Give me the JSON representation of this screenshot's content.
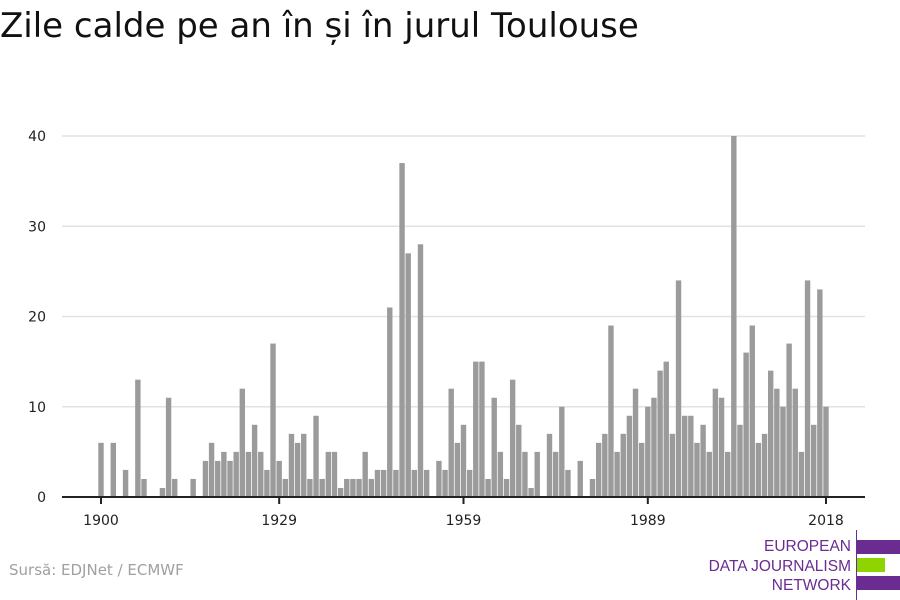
{
  "title": "Zile calde pe an în și în jurul Toulouse",
  "source": "Sursă: EDJNet / ECMWF",
  "logo": {
    "lines": [
      "EUROPEAN",
      "DATA JOURNALISM",
      "NETWORK"
    ],
    "purple": "#6a2c91",
    "green": "#8fd400"
  },
  "chart_data": {
    "type": "bar",
    "title": "Zile calde pe an în și în jurul Toulouse",
    "xlabel": "",
    "ylabel": "",
    "ylim": [
      0,
      40
    ],
    "yticks": [
      0,
      10,
      20,
      30,
      40
    ],
    "xticks": [
      1900,
      1929,
      1959,
      1989,
      2018
    ],
    "grid": true,
    "bar_color": "#9b9b9b",
    "x_start": 1900,
    "values": [
      6,
      0,
      6,
      0,
      3,
      0,
      13,
      2,
      0,
      0,
      1,
      11,
      2,
      0,
      0,
      2,
      0,
      4,
      6,
      4,
      5,
      4,
      5,
      12,
      5,
      8,
      5,
      3,
      17,
      4,
      2,
      7,
      6,
      7,
      2,
      9,
      2,
      5,
      5,
      1,
      2,
      2,
      2,
      5,
      2,
      3,
      3,
      21,
      3,
      37,
      27,
      3,
      28,
      3,
      0,
      4,
      3,
      12,
      6,
      8,
      3,
      15,
      15,
      2,
      11,
      5,
      2,
      13,
      8,
      5,
      1,
      5,
      0,
      7,
      5,
      10,
      3,
      0,
      4,
      0,
      2,
      6,
      7,
      19,
      5,
      7,
      9,
      12,
      6,
      10,
      11,
      14,
      15,
      7,
      24,
      9,
      9,
      6,
      8,
      5,
      12,
      11,
      5,
      40,
      8,
      16,
      19,
      6,
      7,
      14,
      12,
      10,
      17,
      12,
      5,
      24,
      8,
      23,
      10
    ]
  }
}
